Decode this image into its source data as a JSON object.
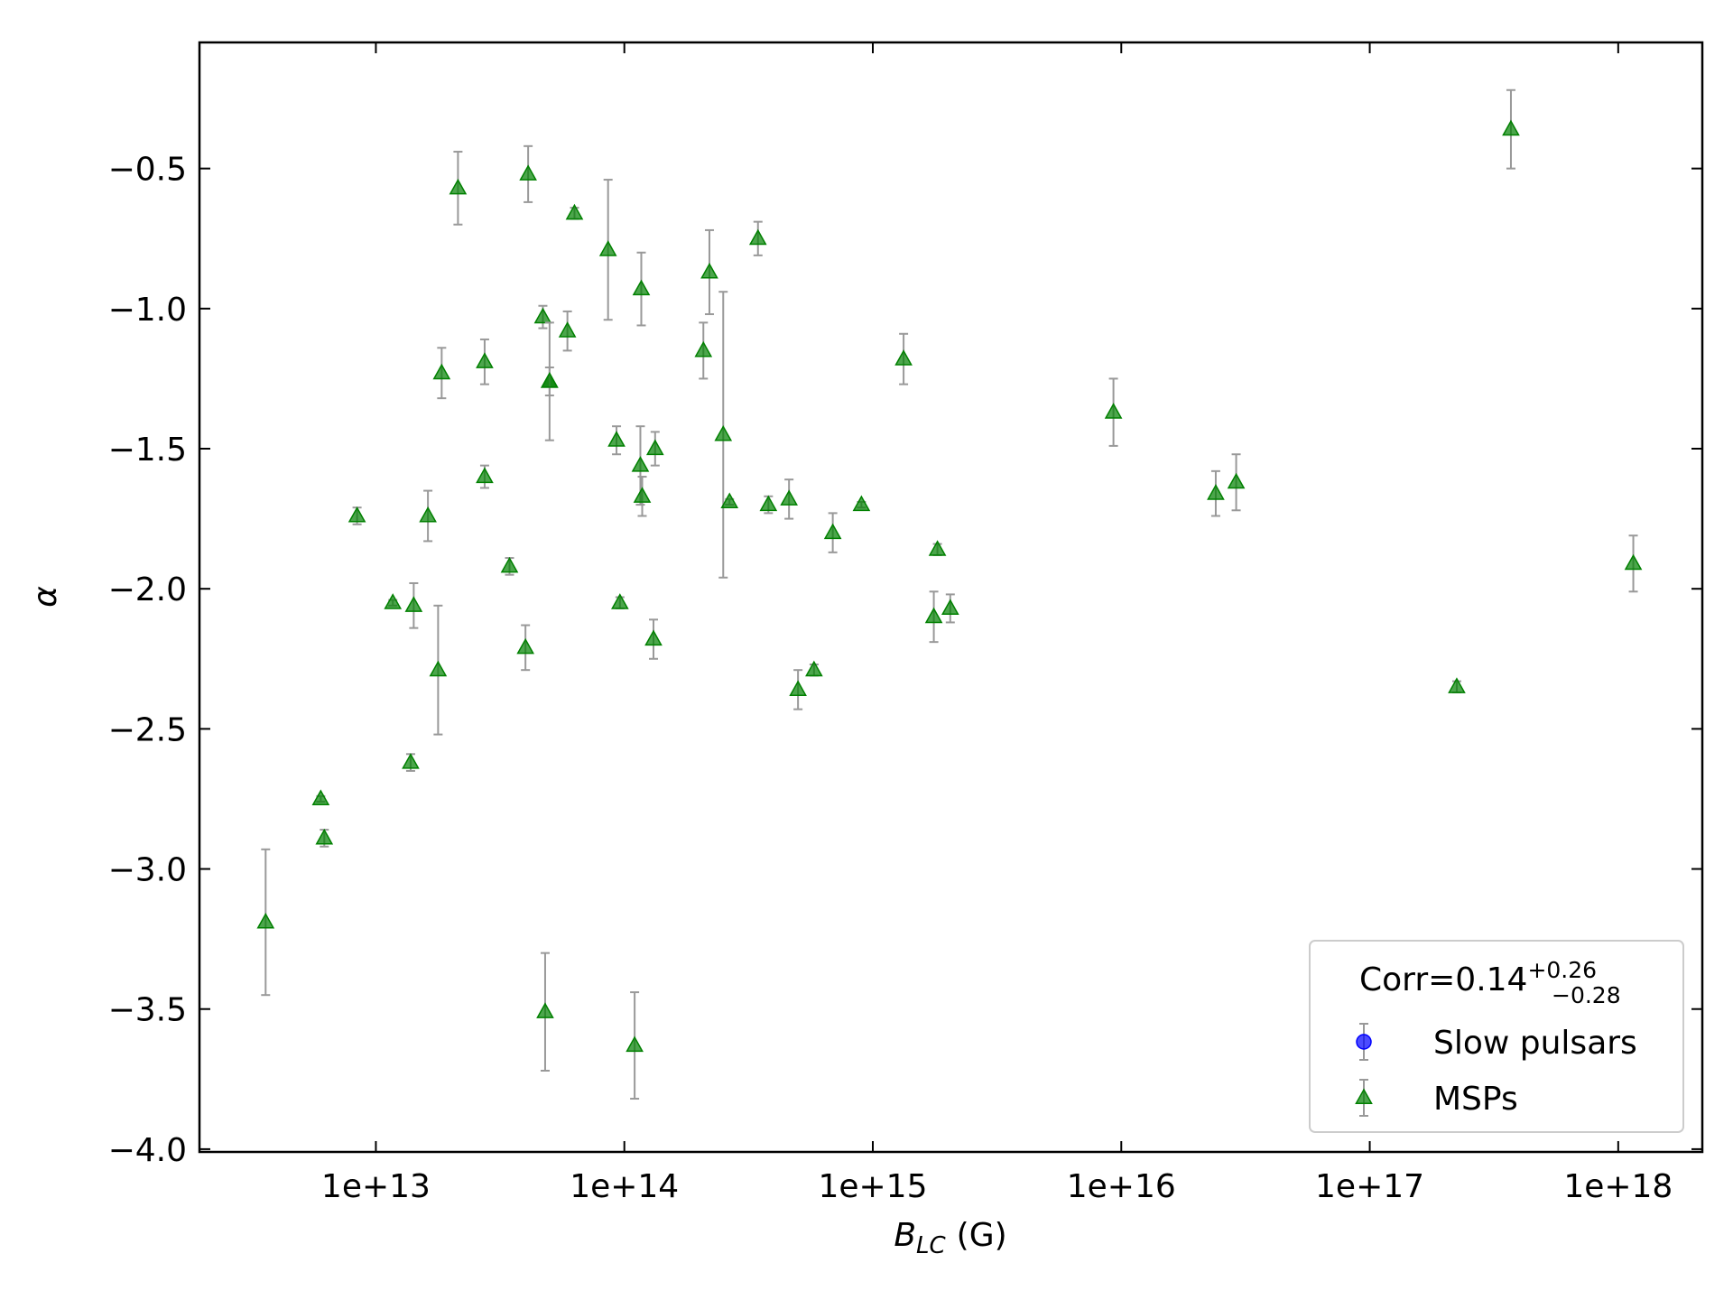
{
  "chart_data": {
    "type": "scatter",
    "xlabel": {
      "text": "B",
      "sub": "LC",
      "unit": "(G)"
    },
    "ylabel": "α",
    "xscale": "log",
    "xlim": [
      1950000000000.0,
      2.18e+18
    ],
    "ylim": [
      -4.01,
      -0.05
    ],
    "xticks": [
      {
        "value": 10000000000000.0,
        "label": "1e+13"
      },
      {
        "value": 100000000000000.0,
        "label": "1e+14"
      },
      {
        "value": 1000000000000000.0,
        "label": "1e+15"
      },
      {
        "value": 1e+16,
        "label": "1e+16"
      },
      {
        "value": 1e+17,
        "label": "1e+17"
      },
      {
        "value": 1e+18,
        "label": "1e+18"
      }
    ],
    "yticks": [
      {
        "value": -4.0,
        "label": "−4.0"
      },
      {
        "value": -3.5,
        "label": "−3.5"
      },
      {
        "value": -3.0,
        "label": "−3.0"
      },
      {
        "value": -2.5,
        "label": "−2.5"
      },
      {
        "value": -2.0,
        "label": "−2.0"
      },
      {
        "value": -1.5,
        "label": "−1.5"
      },
      {
        "value": -1.0,
        "label": "−1.0"
      },
      {
        "value": -0.5,
        "label": "−0.5"
      }
    ],
    "legend_title": {
      "text": "Corr=0.14",
      "sup": "+0.26",
      "sub": "−0.28"
    },
    "legend_position": "lower right",
    "errorbar_color": "#999999",
    "series": [
      {
        "name": "Slow pulsars",
        "color": "#0000ff",
        "marker": "circle",
        "x": [],
        "values": [],
        "errors": []
      },
      {
        "name": "MSPs",
        "color": "#008000",
        "marker": "triangle",
        "x": [
          3600000000000.0,
          6000000000000.0,
          6200000000000.0,
          8400000000000.0,
          11700000000000.0,
          14200000000000.0,
          13800000000000.0,
          16200000000000.0,
          17800000000000.0,
          18400000000000.0,
          21400000000000.0,
          27400000000000.0,
          27400000000000.0,
          34500000000000.0,
          41000000000000.0,
          40000000000000.0,
          47000000000000.0,
          48000000000000.0,
          50000000000000.0,
          50000000000000.0,
          59000000000000.0,
          63000000000000.0,
          86000000000000.0,
          93000000000000.0,
          96000000000000.0,
          110000000000000.0,
          116000000000000.0,
          117000000000000.0,
          118000000000000.0,
          133000000000000.0,
          131000000000000.0,
          208000000000000.0,
          220000000000000.0,
          250000000000000.0,
          265000000000000.0,
          345000000000000.0,
          380000000000000.0,
          460000000000000.0,
          500000000000000.0,
          580000000000000.0,
          690000000000000.0,
          900000000000000.0,
          1330000000000000.0,
          1760000000000000.0,
          1820000000000000.0,
          2050000000000000.0,
          9300000000000000.0,
          2.4e+16,
          2.9e+16,
          2.24e+17,
          3.7e+17,
          1.15e+18
        ],
        "values": [
          -3.19,
          -2.75,
          -2.89,
          -1.74,
          -2.05,
          -2.06,
          -2.62,
          -1.74,
          -2.29,
          -1.23,
          -0.57,
          -1.19,
          -1.6,
          -1.92,
          -0.52,
          -2.21,
          -1.03,
          -3.51,
          -1.26,
          -1.26,
          -1.08,
          -0.66,
          -0.79,
          -1.47,
          -2.05,
          -3.63,
          -1.56,
          -0.93,
          -1.67,
          -1.5,
          -2.18,
          -1.15,
          -0.87,
          -1.45,
          -1.69,
          -0.75,
          -1.7,
          -1.68,
          -2.36,
          -2.29,
          -1.8,
          -1.7,
          -1.18,
          -2.1,
          -1.86,
          -2.07,
          -1.37,
          -1.66,
          -1.62,
          -2.35,
          -0.36,
          -1.91
        ],
        "errors": [
          0.26,
          0.01,
          0.03,
          0.03,
          0.01,
          0.08,
          0.03,
          0.09,
          0.23,
          0.09,
          0.13,
          0.08,
          0.04,
          0.03,
          0.1,
          0.08,
          0.04,
          0.21,
          0.05,
          0.21,
          0.07,
          0.02,
          0.25,
          0.05,
          0.02,
          0.19,
          0.14,
          0.13,
          0.07,
          0.06,
          0.07,
          0.1,
          0.15,
          0.51,
          0.01,
          0.06,
          0.03,
          0.07,
          0.07,
          0.02,
          0.07,
          0.01,
          0.09,
          0.09,
          0.02,
          0.05,
          0.12,
          0.08,
          0.1,
          0.02,
          0.14,
          0.1
        ]
      }
    ]
  }
}
